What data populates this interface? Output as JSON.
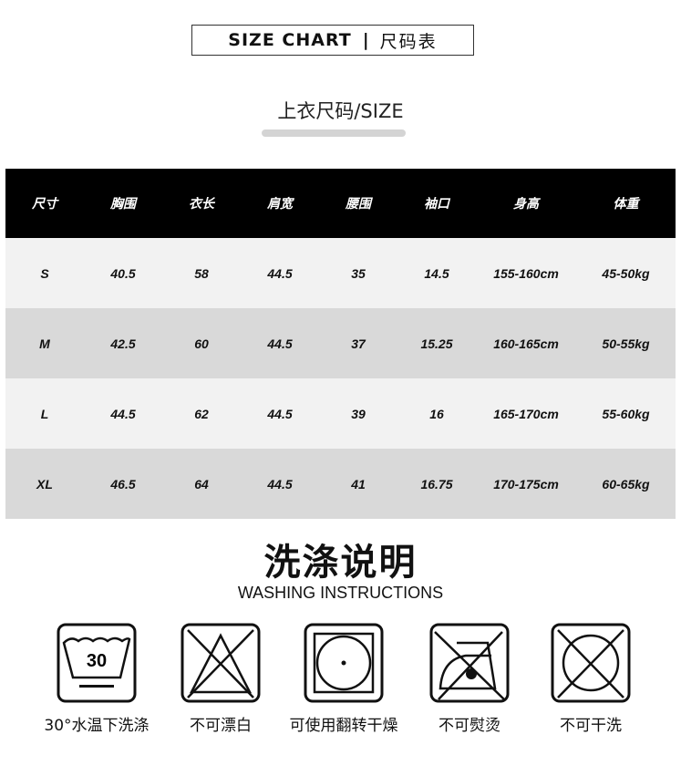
{
  "header": {
    "title_en": "SIZE CHART",
    "separator": "|",
    "title_cn": "尺码表"
  },
  "subtitle": "上衣尺码/SIZE",
  "table": {
    "columns": [
      "尺寸",
      "胸围",
      "衣长",
      "肩宽",
      "腰围",
      "袖口",
      "身高",
      "体重"
    ],
    "rows": [
      [
        "S",
        "40.5",
        "58",
        "44.5",
        "35",
        "14.5",
        "155-160cm",
        "45-50kg"
      ],
      [
        "M",
        "42.5",
        "60",
        "44.5",
        "37",
        "15.25",
        "160-165cm",
        "50-55kg"
      ],
      [
        "L",
        "44.5",
        "62",
        "44.5",
        "39",
        "16",
        "165-170cm",
        "55-60kg"
      ],
      [
        "XL",
        "46.5",
        "64",
        "44.5",
        "41",
        "16.75",
        "170-175cm",
        "60-65kg"
      ]
    ]
  },
  "washing": {
    "title": "洗涤说明",
    "subtitle": "WASHING INSTRUCTIONS",
    "icons": [
      {
        "icon": "wash-30-icon",
        "temp": "30",
        "label": "30°水温下洗涤"
      },
      {
        "icon": "no-bleach-icon",
        "label": "不可漂白"
      },
      {
        "icon": "tumble-dry-icon",
        "label": "可使用翻转干燥"
      },
      {
        "icon": "no-iron-icon",
        "label": "不可熨烫"
      },
      {
        "icon": "no-dry-clean-icon",
        "label": "不可干洗"
      }
    ]
  }
}
